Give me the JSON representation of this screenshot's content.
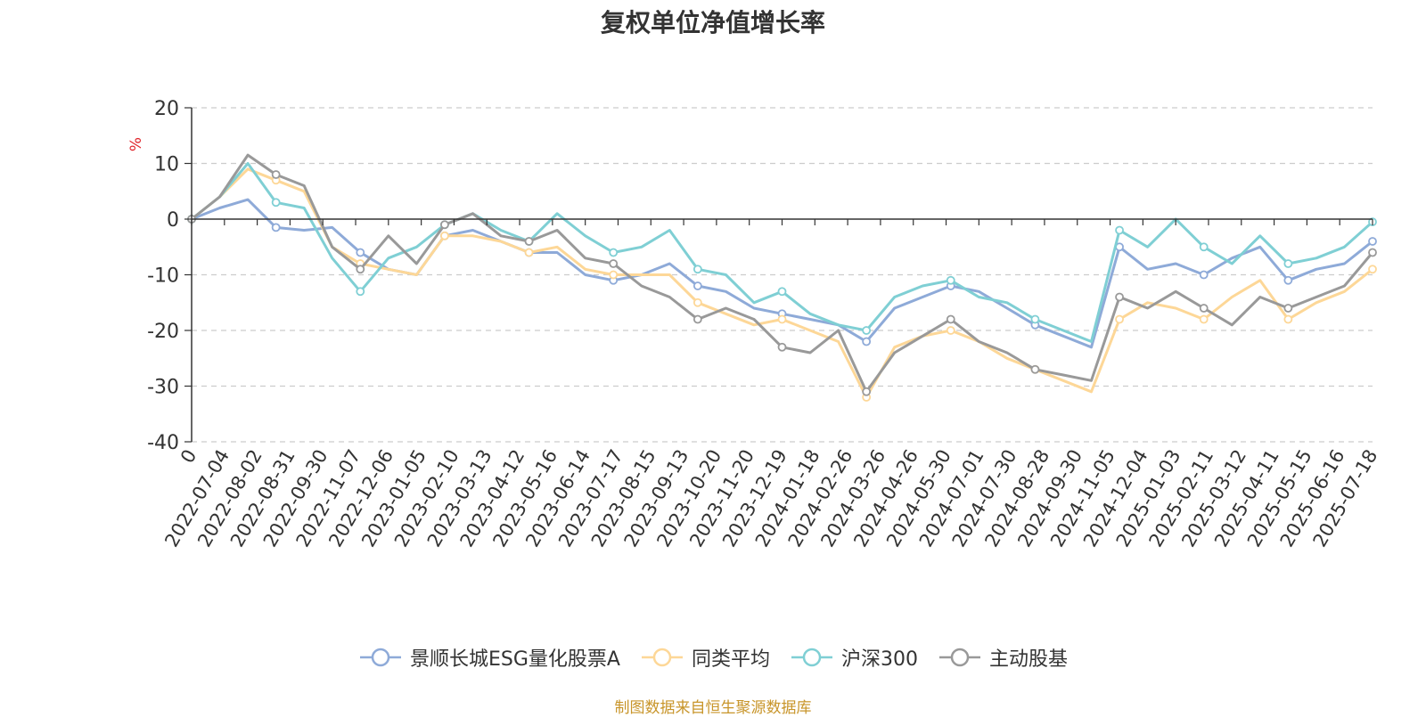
{
  "chart_data": {
    "type": "line",
    "title": "复权单位净值增长率",
    "ylabel": "%",
    "ylim": [
      -40,
      20
    ],
    "yticks": [
      20,
      10,
      0,
      -10,
      -20,
      -30,
      -40
    ],
    "x_tick_labels": [
      "0",
      "2022-07-04",
      "2022-08-02",
      "2022-08-31",
      "2022-09-30",
      "2022-11-07",
      "2022-12-06",
      "2023-01-05",
      "2023-02-10",
      "2023-03-13",
      "2023-04-12",
      "2023-05-16",
      "2023-06-14",
      "2023-07-17",
      "2023-08-15",
      "2023-09-13",
      "2023-10-20",
      "2023-11-20",
      "2023-12-19",
      "2024-01-18",
      "2024-02-26",
      "2024-03-26",
      "2024-04-26",
      "2024-05-30",
      "2024-07-01",
      "2024-07-30",
      "2024-08-28",
      "2024-09-30",
      "2024-11-05",
      "2024-12-04",
      "2025-01-03",
      "2025-02-11",
      "2025-03-12",
      "2025-04-11",
      "2025-05-15",
      "2025-06-16",
      "2025-07-18"
    ],
    "grid": "horizontal-dashed",
    "legend_position": "bottom-center",
    "series": [
      {
        "name": "景顺长城ESG量化股票A",
        "color": "#8eaad8",
        "values": [
          0,
          2,
          3.5,
          -1.5,
          -2,
          -1.5,
          -6,
          -9,
          -10,
          -3,
          -2,
          -4,
          -6,
          -6,
          -10,
          -11,
          -10,
          -8,
          -12,
          -13,
          -16,
          -17,
          -18,
          -19,
          -22,
          -16,
          -14,
          -12,
          -13,
          -16,
          -19,
          -21,
          -23,
          -5,
          -9,
          -8,
          -10,
          -7,
          -5,
          -11,
          -9,
          -8,
          -4
        ]
      },
      {
        "name": "同类平均",
        "color": "#fdd797",
        "values": [
          0,
          4,
          9,
          7,
          5,
          -5,
          -8,
          -9,
          -10,
          -3,
          -3,
          -4,
          -6,
          -5,
          -9,
          -10,
          -10,
          -10,
          -15,
          -17,
          -19,
          -18,
          -20,
          -22,
          -32,
          -23,
          -21,
          -20,
          -22,
          -25,
          -27,
          -29,
          -31,
          -18,
          -15,
          -16,
          -18,
          -14,
          -11,
          -18,
          -15,
          -13,
          -9
        ]
      },
      {
        "name": "沪深300",
        "color": "#7fcfd4",
        "values": [
          0,
          4,
          10,
          3,
          2,
          -7,
          -13,
          -7,
          -5,
          -1,
          1,
          -2,
          -4,
          1,
          -3,
          -6,
          -5,
          -2,
          -9,
          -10,
          -15,
          -13,
          -17,
          -19,
          -20,
          -14,
          -12,
          -11,
          -14,
          -15,
          -18,
          -20,
          -22,
          -2,
          -5,
          0,
          -5,
          -8,
          -3,
          -8,
          -7,
          -5,
          -0.5
        ]
      },
      {
        "name": "主动股基",
        "color": "#999999",
        "values": [
          0,
          4,
          11.5,
          8,
          6,
          -5,
          -9,
          -3,
          -8,
          -1,
          1,
          -3,
          -4,
          -2,
          -7,
          -8,
          -12,
          -14,
          -18,
          -16,
          -18,
          -23,
          -24,
          -20,
          -31,
          -24,
          -21,
          -18,
          -22,
          -24,
          -27,
          -28,
          -29,
          -14,
          -16,
          -13,
          -16,
          -19,
          -14,
          -16,
          -14,
          -12,
          -6
        ]
      }
    ]
  },
  "legend_items": [
    "景顺长城ESG量化股票A",
    "同类平均",
    "沪深300",
    "主动股基"
  ],
  "source_note": "制图数据来自恒生聚源数据库",
  "colors": {
    "source_note": "#c8952a",
    "unit_label": "#e0262c",
    "axis": "#333333",
    "grid": "#cccccc"
  }
}
